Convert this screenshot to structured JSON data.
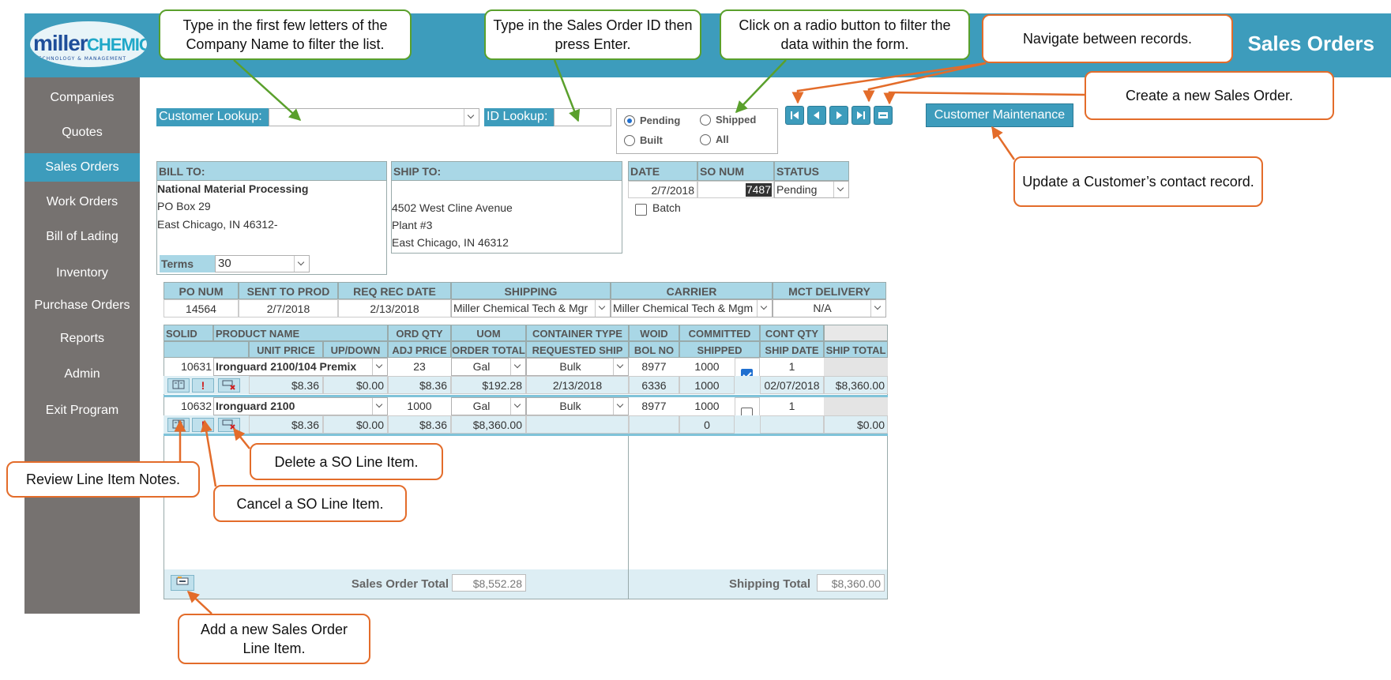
{
  "header": {
    "logo_main": "miller",
    "logo_accent": "CHEMICAL",
    "logo_tag": "TECHNOLOGY & MANAGEMENT",
    "title": "Sales Orders",
    "accent": "#3d9cbc"
  },
  "sidebar": {
    "items": [
      {
        "label": "Companies"
      },
      {
        "label": "Quotes"
      },
      {
        "label": "Sales Orders",
        "active": true
      },
      {
        "label": "Work Orders"
      },
      {
        "label": "Bill of Lading"
      },
      {
        "label": "Inventory"
      },
      {
        "label": "Purchase Orders"
      },
      {
        "label": "Reports"
      },
      {
        "label": "Admin"
      },
      {
        "label": "Exit Program"
      }
    ]
  },
  "lookup": {
    "customer_label": "Customer Lookup:",
    "customer_value": "",
    "id_label": "ID Lookup:",
    "id_value": ""
  },
  "filters": {
    "pending": "Pending",
    "shipped": "Shipped",
    "built": "Built",
    "all": "All",
    "selected": "Pending"
  },
  "customer_maintenance": "Customer Maintenance",
  "bill_to": {
    "label": "BILL TO:",
    "name": "National Material Processing",
    "line1": "PO Box 29",
    "line2": "East Chicago, IN  46312-",
    "terms_label": "Terms",
    "terms_value": "30"
  },
  "ship_to": {
    "label": "SHIP TO:",
    "line1": "4502 West Cline Avenue",
    "line2": "Plant #3",
    "line3": "East Chicago, IN  46312"
  },
  "order_info": {
    "date_label": "DATE",
    "so_num_label": "SO NUM",
    "status_label": "STATUS",
    "date": "2/7/2018",
    "so_num": "7487",
    "status": "Pending",
    "batch_label": "Batch"
  },
  "po": {
    "headers": {
      "po_num": "PO NUM",
      "sent_to_prod": "SENT TO PROD",
      "req_rec_date": "REQ REC DATE",
      "shipping": "SHIPPING",
      "carrier": "CARRIER",
      "mct_delivery": "MCT DELIVERY"
    },
    "values": {
      "po_num": "14564",
      "sent_to_prod": "2/7/2018",
      "req_rec_date": "2/13/2018",
      "shipping": "Miller Chemical Tech & Mgr",
      "carrier": "Miller Chemical Tech & Mgm",
      "mct_delivery": "N/A"
    }
  },
  "lines": {
    "headers": {
      "solid": "SOLID",
      "product_name": "PRODUCT NAME",
      "ord_qty": "ORD QTY",
      "uom": "UOM",
      "container_type": "CONTAINER TYPE",
      "woid": "WOID",
      "committed": "COMMITTED",
      "cont_qty": "CONT QTY",
      "unit_price": "UNIT PRICE",
      "up_down": "UP/DOWN",
      "adj_price": "ADJ PRICE",
      "order_total": "ORDER TOTAL",
      "requested_ship": "REQUESTED SHIP",
      "bol_no": "BOL NO",
      "shipped": "SHIPPED",
      "ship_date": "SHIP DATE",
      "ship_total": "SHIP TOTAL"
    },
    "rows": [
      {
        "solid": "10631",
        "product": "Ironguard 2100/104 Premix",
        "ord_qty": "23",
        "uom": "Gal",
        "container": "Bulk",
        "woid": "8977",
        "committed": "1000",
        "cont_qty": "1",
        "unit_price": "$8.36",
        "up_down": "$0.00",
        "adj_price": "$8.36",
        "order_total": "$192.28",
        "requested_ship": "2/13/2018",
        "bol_no": "6336",
        "shipped": "1000",
        "checked": true,
        "ship_date": "02/07/2018",
        "ship_total": "$8,360.00"
      },
      {
        "solid": "10632",
        "product": "Ironguard 2100",
        "ord_qty": "1000",
        "uom": "Gal",
        "container": "Bulk",
        "woid": "8977",
        "committed": "1000",
        "cont_qty": "1",
        "unit_price": "$8.36",
        "up_down": "$0.00",
        "adj_price": "$8.36",
        "order_total": "$8,360.00",
        "requested_ship": "",
        "bol_no": "",
        "shipped": "0",
        "checked": false,
        "ship_date": "",
        "ship_total": "$0.00"
      }
    ]
  },
  "totals": {
    "sales_label": "Sales Order Total",
    "sales_value": "$8,552.28",
    "shipping_label": "Shipping Total",
    "shipping_value": "$8,360.00"
  },
  "callouts": {
    "customer": "Type in the first few letters of the Company Name to filter the list.",
    "id": "Type in the Sales Order ID then press Enter.",
    "radio": "Click on a radio button to filter the data within the form.",
    "navigate": "Navigate between records.",
    "create": "Create a new Sales Order.",
    "update": "Update a Customer’s contact record.",
    "review": "Review Line Item Notes.",
    "delete": "Delete a SO Line Item.",
    "cancel": "Cancel a SO Line Item.",
    "add": "Add a new Sales Order Line Item."
  }
}
